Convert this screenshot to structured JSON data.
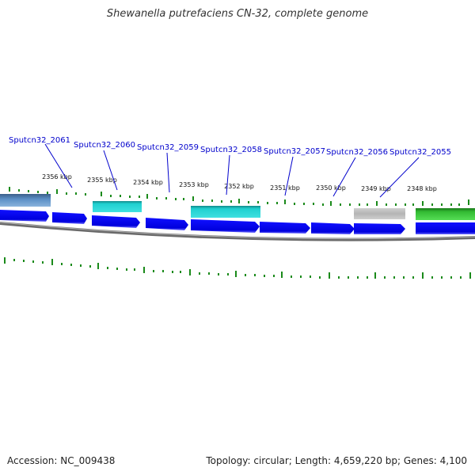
{
  "title": "Shewanella putrefaciens CN-32, complete genome",
  "footer": {
    "accession": "Accession: NC_009438",
    "summary": "Topology: circular; Length: 4,659,220 bp; Genes: 4,100"
  },
  "kbp_labels": [
    "2356 kbp",
    "2355 kbp",
    "2354 kbp",
    "2353 kbp",
    "2352 kbp",
    "2351 kbp",
    "2350 kbp",
    "2349 kbp",
    "2348 kbp"
  ],
  "gene_labels": [
    "Sputcn32_2061",
    "Sputcn32_2060",
    "Sputcn32_2059",
    "Sputcn32_2058",
    "Sputcn32_2057",
    "Sputcn32_2056",
    "Sputcn32_2055"
  ],
  "colors": {
    "cds": "#0000ee",
    "feature_teal": "#20d0d0",
    "feature_grey": "#b8b8b8",
    "feature_green": "#33bb33",
    "feature_steel": "#4a7fb5",
    "backbone": "#7a7a7a",
    "tick": "#1a8a1a",
    "label": "#0000cc"
  }
}
